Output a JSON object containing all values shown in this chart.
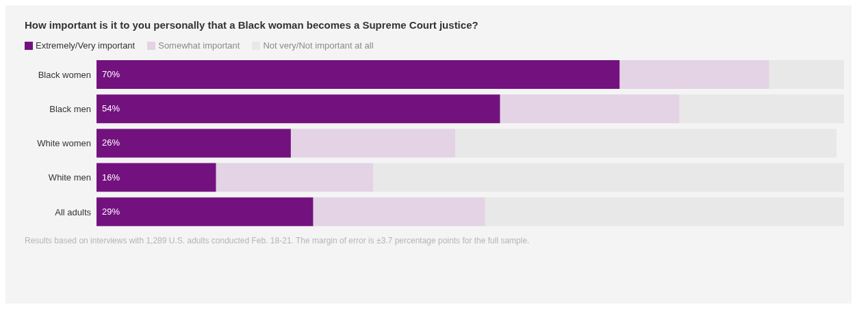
{
  "chart_data": {
    "type": "bar",
    "orientation": "horizontal",
    "stacked": true,
    "title": "How important is it to you personally that a Black woman becomes a Supreme Court justice?",
    "categories": [
      "Black women",
      "Black men",
      "White women",
      "White men",
      "All adults"
    ],
    "series": [
      {
        "name": "Extremely/Very important",
        "color": "#73127f",
        "values": [
          70,
          54,
          26,
          16,
          29
        ],
        "value_labels": [
          "70%",
          "54%",
          "26%",
          "16%",
          "29%"
        ]
      },
      {
        "name": "Somewhat important",
        "color": "#e3d3e5",
        "values": [
          20,
          24,
          22,
          21,
          23
        ]
      },
      {
        "name": "Not very/Not important at all",
        "color": "#e8e8e8",
        "values": [
          10,
          22,
          51,
          63,
          48
        ]
      }
    ],
    "xlim": [
      0,
      100
    ],
    "tick_labels": "y",
    "grid": false,
    "legend": "top left",
    "annotations": [
      "Results based on interviews with 1,289 U.S. adults conducted Feb. 18-21. The margin of error is ±3.7 percentage points for the full sample."
    ]
  }
}
